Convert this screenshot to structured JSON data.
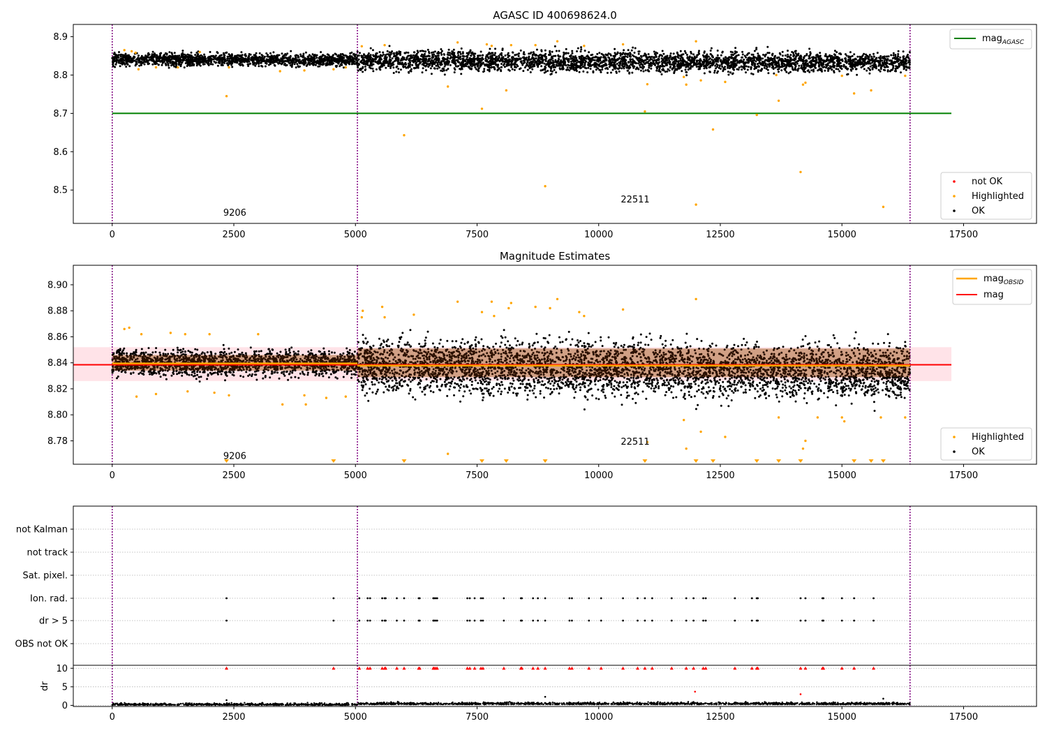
{
  "figure": {
    "bg": "#ffffff"
  },
  "colors": {
    "ok": "#000000",
    "highlighted": "#ffa500",
    "not_ok": "#ff0000",
    "agasc_line": "#008000",
    "obsid_line": "#ffa500",
    "mag_line": "#ff0000",
    "band": "#ffc0cb",
    "band_obsid": "#ffdab9",
    "vline": "#800080",
    "grid": "#b0b0b0"
  },
  "chart_data": [
    {
      "type": "scatter",
      "title": "AGASC ID 400698624.0",
      "xlim": [
        -800,
        19000
      ],
      "ylim": [
        8.413,
        8.932
      ],
      "xticks": [
        0,
        2500,
        5000,
        7500,
        10000,
        12500,
        15000,
        17500
      ],
      "xtick_labels": [
        "0",
        "2500",
        "5000",
        "7500",
        "10000",
        "12500",
        "15000",
        "17500"
      ],
      "yticks": [
        8.5,
        8.6,
        8.7,
        8.8,
        8.9
      ],
      "ytick_labels": [
        "8.5",
        "8.6",
        "8.7",
        "8.8",
        "8.9"
      ],
      "vlines": [
        0,
        5040,
        16400
      ],
      "obsid_labels": [
        {
          "text": "9206",
          "x": 2520,
          "y": 8.433
        },
        {
          "text": "22511",
          "x": 10750,
          "y": 8.468
        }
      ],
      "agasc_line": {
        "y": 8.7,
        "x": [
          0,
          17250
        ]
      },
      "ok_segments": [
        {
          "x0": 0,
          "x1": 5040,
          "center": 8.84,
          "spread": 0.008,
          "n": 1500
        },
        {
          "x0": 5040,
          "x1": 16400,
          "center": 8.838,
          "spread": 0.013,
          "n": 3400,
          "trend": -0.012
        }
      ],
      "highlighted": [
        [
          250,
          8.865
        ],
        [
          400,
          8.862
        ],
        [
          480,
          8.858
        ],
        [
          540,
          8.815
        ],
        [
          900,
          8.82
        ],
        [
          1350,
          8.82
        ],
        [
          1800,
          8.86
        ],
        [
          2350,
          8.745
        ],
        [
          2400,
          8.82
        ],
        [
          3450,
          8.81
        ],
        [
          3950,
          8.812
        ],
        [
          4550,
          8.815
        ],
        [
          4800,
          8.82
        ],
        [
          5130,
          8.875
        ],
        [
          5600,
          8.878
        ],
        [
          6000,
          8.643
        ],
        [
          6900,
          8.77
        ],
        [
          7100,
          8.885
        ],
        [
          7600,
          8.712
        ],
        [
          7700,
          8.88
        ],
        [
          7800,
          8.876
        ],
        [
          8100,
          8.76
        ],
        [
          8200,
          8.878
        ],
        [
          8700,
          8.878
        ],
        [
          8900,
          8.51
        ],
        [
          9150,
          8.888
        ],
        [
          9700,
          8.876
        ],
        [
          10500,
          8.88
        ],
        [
          10950,
          8.705
        ],
        [
          11000,
          8.776
        ],
        [
          11750,
          8.795
        ],
        [
          11800,
          8.775
        ],
        [
          12000,
          8.462
        ],
        [
          12100,
          8.786
        ],
        [
          12350,
          8.658
        ],
        [
          12600,
          8.782
        ],
        [
          12000,
          8.888
        ],
        [
          13250,
          8.696
        ],
        [
          13650,
          8.8
        ],
        [
          13700,
          8.733
        ],
        [
          14150,
          8.547
        ],
        [
          14200,
          8.775
        ],
        [
          14250,
          8.78
        ],
        [
          15000,
          8.798
        ],
        [
          15250,
          8.752
        ],
        [
          15600,
          8.76
        ],
        [
          15850,
          8.456
        ],
        [
          16300,
          8.798
        ]
      ],
      "legend": {
        "position": "lower-right",
        "entries": [
          "not OK",
          "Highlighted",
          "OK"
        ]
      },
      "legend_top": {
        "position": "upper-right",
        "entries": [
          "mag_AGASC"
        ]
      }
    },
    {
      "type": "scatter",
      "title": "Magnitude Estimates",
      "xlim": [
        -800,
        19000
      ],
      "ylim": [
        8.762,
        8.915
      ],
      "xticks": [
        0,
        2500,
        5000,
        7500,
        10000,
        12500,
        15000,
        17500
      ],
      "xtick_labels": [
        "0",
        "2500",
        "5000",
        "7500",
        "10000",
        "12500",
        "15000",
        "17500"
      ],
      "yticks": [
        8.78,
        8.8,
        8.82,
        8.84,
        8.86,
        8.88,
        8.9
      ],
      "ytick_labels": [
        "8.78",
        "8.80",
        "8.82",
        "8.84",
        "8.86",
        "8.88",
        "8.90"
      ],
      "vlines": [
        0,
        5040,
        16400
      ],
      "obsid_labels": [
        {
          "text": "9206",
          "x": 2520,
          "y": 8.766
        },
        {
          "text": "22511",
          "x": 10750,
          "y": 8.777
        }
      ],
      "mag_line": {
        "y": 8.8385,
        "x": [
          -800,
          17250
        ]
      },
      "mag_band": {
        "y0": 8.826,
        "y1": 8.852
      },
      "obsid_lines": [
        {
          "x0": 0,
          "x1": 5040,
          "y": 8.8395
        },
        {
          "x0": 5040,
          "x1": 16400,
          "y": 8.8378
        }
      ],
      "obsid_bands": [
        {
          "x0": 0,
          "x1": 5040,
          "y0": 8.834,
          "y1": 8.846
        },
        {
          "x0": 5040,
          "x1": 16400,
          "y0": 8.829,
          "y1": 8.851
        }
      ],
      "ok_segments": [
        {
          "x0": 0,
          "x1": 5040,
          "center": 8.84,
          "spread": 0.005,
          "n": 1700
        },
        {
          "x0": 5040,
          "x1": 16400,
          "center": 8.838,
          "spread": 0.01,
          "n": 4300,
          "trend": -0.01
        }
      ],
      "highlighted": [
        [
          250,
          8.866
        ],
        [
          350,
          8.867
        ],
        [
          500,
          8.814
        ],
        [
          600,
          8.862
        ],
        [
          900,
          8.816
        ],
        [
          1200,
          8.863
        ],
        [
          1500,
          8.862
        ],
        [
          1550,
          8.818
        ],
        [
          2000,
          8.862
        ],
        [
          2100,
          8.817
        ],
        [
          2400,
          8.815
        ],
        [
          3000,
          8.862
        ],
        [
          3500,
          8.808
        ],
        [
          3950,
          8.815
        ],
        [
          3980,
          8.808
        ],
        [
          4400,
          8.813
        ],
        [
          4800,
          8.814
        ],
        [
          5130,
          8.875
        ],
        [
          5150,
          8.88
        ],
        [
          5550,
          8.883
        ],
        [
          5600,
          8.875
        ],
        [
          6200,
          8.877
        ],
        [
          6900,
          8.77
        ],
        [
          7100,
          8.887
        ],
        [
          7600,
          8.879
        ],
        [
          7800,
          8.887
        ],
        [
          7850,
          8.876
        ],
        [
          8150,
          8.882
        ],
        [
          8200,
          8.886
        ],
        [
          8700,
          8.883
        ],
        [
          9000,
          8.882
        ],
        [
          9150,
          8.889
        ],
        [
          9600,
          8.879
        ],
        [
          9700,
          8.876
        ],
        [
          10500,
          8.881
        ],
        [
          11000,
          8.779
        ],
        [
          11750,
          8.796
        ],
        [
          11800,
          8.774
        ],
        [
          12000,
          8.889
        ],
        [
          12100,
          8.787
        ],
        [
          12600,
          8.783
        ],
        [
          13700,
          8.798
        ],
        [
          14200,
          8.774
        ],
        [
          14250,
          8.78
        ],
        [
          14500,
          8.798
        ],
        [
          15000,
          8.798
        ],
        [
          15050,
          8.795
        ],
        [
          15800,
          8.798
        ],
        [
          16300,
          8.798
        ]
      ],
      "below_markers": [
        2350,
        4550,
        6000,
        7600,
        8100,
        8900,
        10950,
        12000,
        12350,
        13250,
        13700,
        14150,
        15250,
        15600,
        15850
      ],
      "legend": {
        "position": "lower-right",
        "entries": [
          "Highlighted",
          "OK"
        ]
      },
      "legend_top": {
        "position": "upper-right",
        "entries": [
          "mag_OBSID",
          "mag"
        ]
      }
    },
    {
      "type": "scatter",
      "title": "",
      "xlim": [
        -800,
        19000
      ],
      "ytick_labels": [
        "not Kalman",
        "not track",
        "Sat. pixel.",
        "Ion. rad.",
        "dr > 5",
        "OBS not OK"
      ],
      "vlines": [
        0,
        5040,
        16400
      ],
      "flag_x": [
        2350,
        4550,
        5080,
        5250,
        5300,
        5550,
        5600,
        5620,
        5850,
        6000,
        6300,
        6320,
        6600,
        6620,
        6650,
        6680,
        7300,
        7350,
        7450,
        7580,
        7620,
        8050,
        8400,
        8420,
        8650,
        8750,
        8900,
        9400,
        9450,
        9800,
        10050,
        10500,
        10800,
        10950,
        11100,
        11500,
        11800,
        11950,
        12150,
        12200,
        12800,
        13150,
        13250,
        13270,
        14150,
        14250,
        14600,
        14620,
        15000,
        15250,
        15650
      ]
    },
    {
      "type": "scatter",
      "title": "",
      "xlim": [
        -800,
        19000
      ],
      "ylim": [
        -0.3,
        10.8
      ],
      "ylabel": "dr",
      "yticks": [
        0,
        5,
        10
      ],
      "ytick_labels": [
        "0",
        "5",
        "10"
      ],
      "xticks": [
        0,
        2500,
        5000,
        7500,
        10000,
        12500,
        15000,
        17500
      ],
      "xtick_labels": [
        "0",
        "2500",
        "5000",
        "7500",
        "10000",
        "12500",
        "15000",
        "17500"
      ],
      "vlines": [
        0,
        5040,
        16400
      ],
      "capped_x": [
        2350,
        4550,
        5080,
        5250,
        5300,
        5550,
        5600,
        5620,
        5850,
        6000,
        6300,
        6320,
        6600,
        6620,
        6650,
        6680,
        7300,
        7350,
        7450,
        7580,
        7620,
        8050,
        8400,
        8420,
        8650,
        8750,
        8900,
        9400,
        9450,
        9800,
        10050,
        10500,
        10800,
        10950,
        11100,
        11500,
        11800,
        11950,
        12150,
        12200,
        12800,
        13150,
        13250,
        13270,
        14150,
        14250,
        14600,
        14620,
        15000,
        15250,
        15650
      ],
      "red_points": [
        [
          11980,
          3.7
        ],
        [
          14150,
          3.0
        ]
      ],
      "black_outliers": [
        [
          2350,
          1.4
        ],
        [
          8900,
          2.3
        ],
        [
          15850,
          1.8
        ]
      ]
    }
  ]
}
